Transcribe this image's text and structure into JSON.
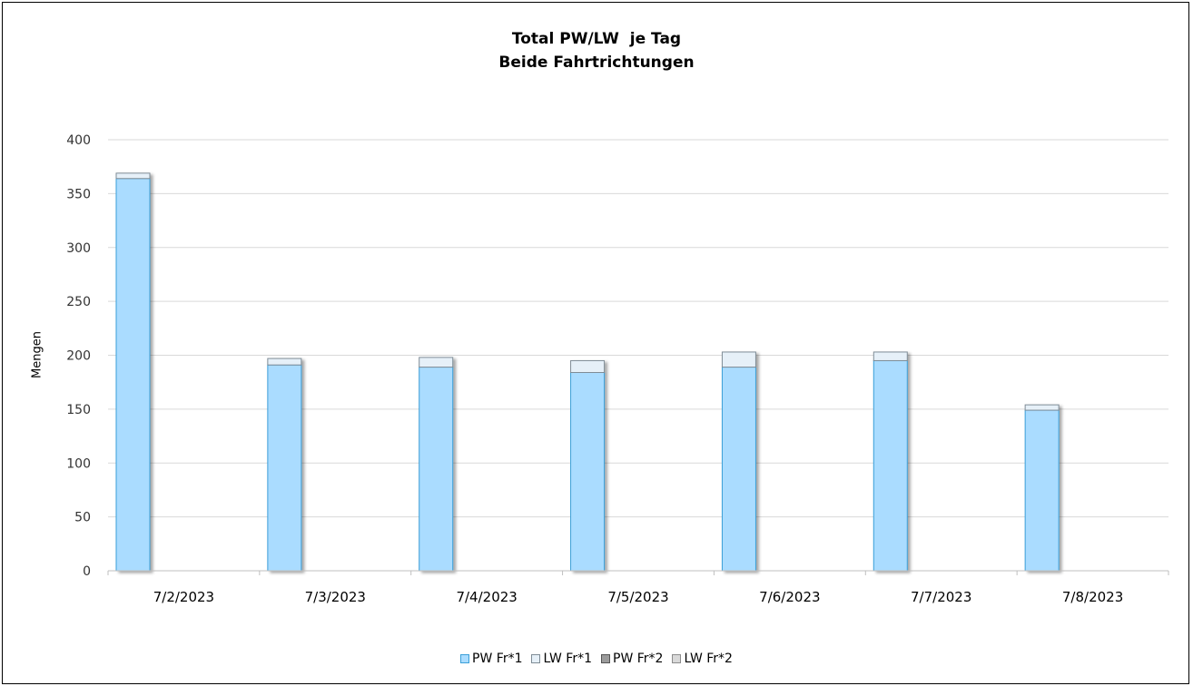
{
  "chart_data": {
    "type": "bar",
    "stacked": true,
    "title": "Total PW/LW  je Tag",
    "subtitle": "Beide Fahrtrichtungen",
    "ylabel": "Mengen",
    "xlabel": "",
    "ylim": [
      0,
      400
    ],
    "yticks": [
      "0",
      "50",
      "100",
      "150",
      "200",
      "250",
      "300",
      "350",
      "400"
    ],
    "grid": true,
    "legend_position": "bottom",
    "categories": [
      "7/2/2023",
      "7/3/2023",
      "7/4/2023",
      "7/5/2023",
      "7/6/2023",
      "7/7/2023",
      "7/8/2023"
    ],
    "series": [
      {
        "name": "PW Fr*1",
        "values": [
          364,
          191,
          189,
          184,
          189,
          195,
          149
        ],
        "color": "#aadcff",
        "stroke": "#3b9fd8"
      },
      {
        "name": "LW Fr*1",
        "values": [
          5,
          6,
          9,
          11,
          14,
          8,
          5
        ],
        "color": "#e6f0f8",
        "stroke": "#7f8c96"
      },
      {
        "name": "PW Fr*2",
        "values": [
          0,
          0,
          0,
          0,
          0,
          0,
          0
        ],
        "color": "#9b9b9b",
        "stroke": "#555555"
      },
      {
        "name": "LW Fr*2",
        "values": [
          0,
          0,
          0,
          0,
          0,
          0,
          0
        ],
        "color": "#d9d9d9",
        "stroke": "#8c8c8c"
      }
    ]
  }
}
